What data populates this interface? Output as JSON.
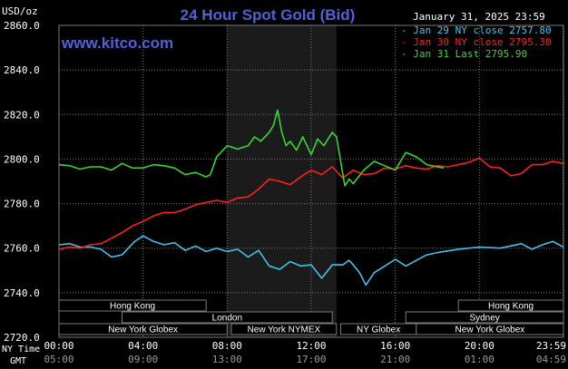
{
  "chart_data": {
    "type": "line",
    "title": "24 Hour Spot Gold (Bid)",
    "site": "www.kitco.com",
    "date_label": "January 31, 2025 23:59",
    "y_unit": "USD/oz",
    "ylim": [
      2720,
      2860
    ],
    "y_ticks": [
      "2860.0",
      "2840.0",
      "2820.0",
      "2800.0",
      "2780.0",
      "2760.0",
      "2740.0",
      "2720.0"
    ],
    "x_row_label_ny": "NY Time",
    "x_row_label_gmt": "GMT",
    "x_ticks_ny": [
      "00:00",
      "04:00",
      "08:00",
      "12:00",
      "16:00",
      "20:00",
      "23:59"
    ],
    "x_ticks_gmt": [
      "05:00",
      "09:00",
      "13:00",
      "17:00",
      "21:00",
      "01:00",
      "04:59"
    ],
    "grid": true,
    "legend_position": "top-right",
    "highlight_band_hours": [
      8.0,
      13.2
    ],
    "colors": {
      "background": "#000000",
      "grid": "#7a7a7a",
      "highlight_band": "#1b1b1b",
      "title": "#4d63d8",
      "axis_text": "#ffffff",
      "jan29": "#3ec3ee",
      "jan30": "#ff1f1f",
      "jan31": "#35d534",
      "session_fill": "#000000",
      "session_text": "#ffffff"
    },
    "series": [
      {
        "name": "Jan 29 NY close 2757.80",
        "key": "jan29",
        "x_hours": [
          0,
          0.5,
          1,
          1.5,
          2,
          2.5,
          3,
          3.3,
          3.6,
          4,
          4.5,
          5,
          5.5,
          6,
          6.5,
          7,
          7.5,
          8,
          8.5,
          9,
          9.5,
          10,
          10.5,
          11,
          11.5,
          12,
          12.5,
          13,
          13.5,
          13.8,
          14,
          14.3,
          14.6,
          15,
          15.5,
          16,
          16.5,
          17,
          17.5,
          18,
          19,
          20,
          21,
          22,
          22.5,
          23,
          23.5,
          24
        ],
        "values": [
          2761.5,
          2762,
          2760.5,
          2760.5,
          2759.5,
          2756,
          2757,
          2760,
          2763,
          2765.5,
          2763,
          2761.5,
          2762.5,
          2759,
          2761,
          2758.5,
          2760,
          2758.5,
          2759.5,
          2756,
          2759,
          2752,
          2750.5,
          2754,
          2752,
          2752.5,
          2746.5,
          2752.5,
          2752.5,
          2754.5,
          2752.5,
          2749,
          2743.5,
          2749,
          2752,
          2755,
          2752,
          2754.5,
          2757,
          2758,
          2759.5,
          2760.5,
          2760,
          2762,
          2759.5,
          2761.5,
          2763,
          2760.5
        ]
      },
      {
        "name": "Jan 30 NY close 2795.30",
        "key": "jan30",
        "x_hours": [
          0,
          0.5,
          1,
          1.5,
          2,
          2.5,
          3,
          3.5,
          4,
          4.5,
          5,
          5.5,
          6,
          6.5,
          7,
          7.5,
          8,
          8.5,
          9,
          9.5,
          10,
          10.5,
          11,
          11.5,
          12,
          12.5,
          13,
          13.5,
          14,
          14.5,
          15,
          15.5,
          16,
          16.5,
          17,
          17.5,
          18,
          18.5,
          19,
          19.5,
          20,
          20.5,
          21,
          21.5,
          22,
          22.5,
          23,
          23.5,
          24
        ],
        "values": [
          2759.5,
          2760.5,
          2760,
          2761.5,
          2762,
          2764.5,
          2767,
          2770,
          2772,
          2774.5,
          2776,
          2776,
          2777.5,
          2779.5,
          2780.5,
          2781.5,
          2780.5,
          2782.5,
          2783,
          2786.5,
          2791,
          2790,
          2788.5,
          2792,
          2795,
          2793,
          2796.5,
          2791.5,
          2795,
          2793,
          2793.5,
          2796,
          2795.5,
          2797,
          2796,
          2795.5,
          2797,
          2796.5,
          2797.5,
          2798.5,
          2800.5,
          2796.5,
          2796,
          2792.5,
          2793.5,
          2797.5,
          2797.5,
          2799,
          2798
        ]
      },
      {
        "name": "Jan 31 Last 2795.90",
        "key": "jan31",
        "x_hours": [
          0,
          0.5,
          1,
          1.5,
          2,
          2.5,
          3,
          3.5,
          4,
          4.5,
          5,
          5.5,
          6,
          6.5,
          7,
          7.2,
          7.5,
          8,
          8.5,
          9,
          9.3,
          9.6,
          10,
          10.2,
          10.4,
          10.6,
          10.8,
          11,
          11.3,
          11.6,
          12,
          12.3,
          12.6,
          13,
          13.2,
          13.4,
          13.6,
          13.8,
          14,
          14.5,
          15,
          15.5,
          16,
          16.5,
          17,
          17.5,
          18,
          18.3
        ],
        "values": [
          2797.5,
          2797,
          2795.5,
          2796.5,
          2796.5,
          2795,
          2798,
          2796,
          2796,
          2797.5,
          2797,
          2796,
          2793,
          2794,
          2792,
          2793,
          2801,
          2806,
          2804.5,
          2806,
          2810,
          2808,
          2812,
          2815,
          2822,
          2812,
          2806,
          2808,
          2804,
          2810,
          2802,
          2809,
          2806,
          2812,
          2810,
          2799,
          2788,
          2791,
          2789,
          2795,
          2799,
          2797,
          2795,
          2803,
          2801,
          2797.5,
          2796.5,
          2796
        ]
      }
    ],
    "sessions": [
      {
        "name": "Hong Kong",
        "start": 0,
        "end": 7,
        "row": 0
      },
      {
        "name": "London",
        "start": 3,
        "end": 13,
        "row": 1
      },
      {
        "name": "New York Globex",
        "start": 0,
        "end": 8,
        "row": 2
      },
      {
        "name": "New York NYMEX",
        "start": 8.2,
        "end": 13.2,
        "row": 2
      },
      {
        "name": "NY Globex",
        "start": 13.4,
        "end": 17,
        "row": 2
      },
      {
        "name": "Hong Kong",
        "start": 19,
        "end": 24,
        "row": 0
      },
      {
        "name": "Sydney",
        "start": 16.5,
        "end": 24,
        "row": 1
      },
      {
        "name": "New York Globex",
        "start": 17,
        "end": 24,
        "row": 2
      }
    ]
  }
}
